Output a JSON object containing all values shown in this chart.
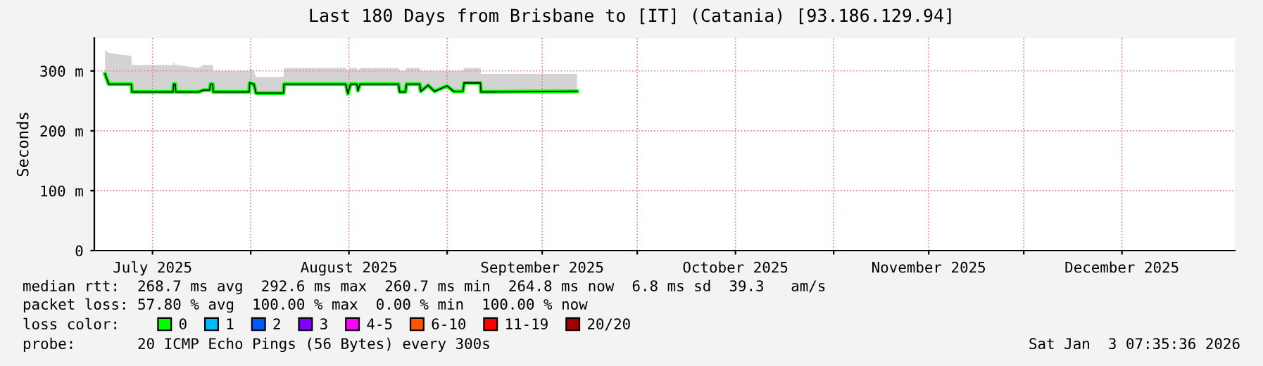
{
  "chart_data": {
    "type": "line",
    "title": "Last 180 Days from Brisbane to [IT] (Catania) [93.186.129.94]",
    "ylabel": "Seconds",
    "xlim": [
      "2025-07-07T07:35",
      "2026-01-03T07:35"
    ],
    "xticks": [
      {
        "value": "2025-07-16T12:00",
        "label": "July 2025"
      },
      {
        "value": "2025-08-01",
        "label": null
      },
      {
        "value": "2025-08-16T12:00",
        "label": "August 2025"
      },
      {
        "value": "2025-09-01",
        "label": null
      },
      {
        "value": "2025-09-16",
        "label": "September 2025"
      },
      {
        "value": "2025-10-01",
        "label": null
      },
      {
        "value": "2025-10-16T12:00",
        "label": "October 2025"
      },
      {
        "value": "2025-11-01",
        "label": null
      },
      {
        "value": "2025-11-16",
        "label": "November 2025"
      },
      {
        "value": "2025-12-01",
        "label": null
      },
      {
        "value": "2025-12-16T12:00",
        "label": "December 2025"
      }
    ],
    "ylim": [
      0,
      355
    ],
    "yticks": [
      0,
      {
        "value": 100,
        "label": "100 m"
      },
      {
        "value": 200,
        "label": "200 m"
      },
      {
        "value": 300,
        "label": "300 m"
      }
    ],
    "grid": true,
    "legend": "bottom",
    "legend_title": "loss color:",
    "series": [
      {
        "name": "0",
        "color": "#00ff00",
        "x": [
          "2025-07-09T00:00",
          "2025-07-09T14:00",
          "2025-07-13T04:00",
          "2025-07-13T06:00",
          "2025-07-19T18:00",
          "2025-07-19T20:00",
          "2025-07-20T02:00",
          "2025-07-20T04:00",
          "2025-07-23T19:00",
          "2025-07-24T12:00",
          "2025-07-25T12:00",
          "2025-07-25T16:00",
          "2025-07-26T00:00",
          "2025-07-26T02:00",
          "2025-07-31T18:00",
          "2025-07-31T20:00",
          "2025-08-01T12:00",
          "2025-08-01T20:00",
          "2025-08-06T04:00",
          "2025-08-06T06:00",
          "2025-08-16T00:00",
          "2025-08-16T08:00",
          "2025-08-16T18:00",
          "2025-08-17T18:00",
          "2025-08-17T22:00",
          "2025-08-18T06:00",
          "2025-08-24T08:00",
          "2025-08-24T12:00",
          "2025-08-25T10:00",
          "2025-08-25T14:00",
          "2025-08-27T16:00",
          "2025-08-27T20:00",
          "2025-08-29T00:00",
          "2025-08-30T00:00",
          "2025-09-01T00:00",
          "2025-09-02T00:00",
          "2025-09-03T12:00",
          "2025-09-03T16:00",
          "2025-09-06T06:00",
          "2025-09-06T08:00",
          "2025-09-21T12:00"
        ],
        "values": [
          295,
          278,
          278,
          265,
          265,
          278,
          278,
          265,
          265,
          268,
          268,
          278,
          278,
          265,
          265,
          280,
          278,
          263,
          263,
          278,
          278,
          262,
          278,
          278,
          267,
          278,
          278,
          265,
          265,
          278,
          278,
          266,
          276,
          266,
          275,
          266,
          266,
          280,
          280,
          265,
          266
        ],
        "lower": [
          295,
          278,
          278,
          265,
          265,
          278,
          278,
          265,
          265,
          268,
          268,
          278,
          278,
          265,
          265,
          280,
          278,
          263,
          263,
          278,
          278,
          262,
          278,
          278,
          267,
          278,
          278,
          265,
          265,
          278,
          278,
          266,
          276,
          266,
          275,
          266,
          266,
          280,
          280,
          265,
          266
        ],
        "upper": [
          335,
          330,
          325,
          310,
          310,
          315,
          310,
          310,
          305,
          310,
          310,
          310,
          310,
          300,
          300,
          305,
          300,
          290,
          290,
          305,
          305,
          300,
          305,
          305,
          300,
          305,
          305,
          300,
          300,
          305,
          305,
          300,
          300,
          300,
          300,
          300,
          300,
          305,
          305,
          295,
          295
        ]
      },
      {
        "name": "1",
        "color": "#00b8ff"
      },
      {
        "name": "2",
        "color": "#0059ff"
      },
      {
        "name": "3",
        "color": "#7e00ff"
      },
      {
        "name": "4-5",
        "color": "#ff00ff"
      },
      {
        "name": "6-10",
        "color": "#ff5500"
      },
      {
        "name": "11-19",
        "color": "#ff0000"
      },
      {
        "name": "20/20",
        "color": "#a10000"
      }
    ],
    "annotations": [
      "median rtt:  268.7 ms avg  292.6 ms max  260.7 ms min  264.8 ms now  6.8 ms sd  39.3   am/s",
      "packet loss: 57.80 % avg  100.00 % max  0.00 % min  100.00 % now",
      "probe:       20 ICMP Echo Pings (56 Bytes) every 300s",
      "Sat Jan  3 07:35:36 2026"
    ]
  }
}
